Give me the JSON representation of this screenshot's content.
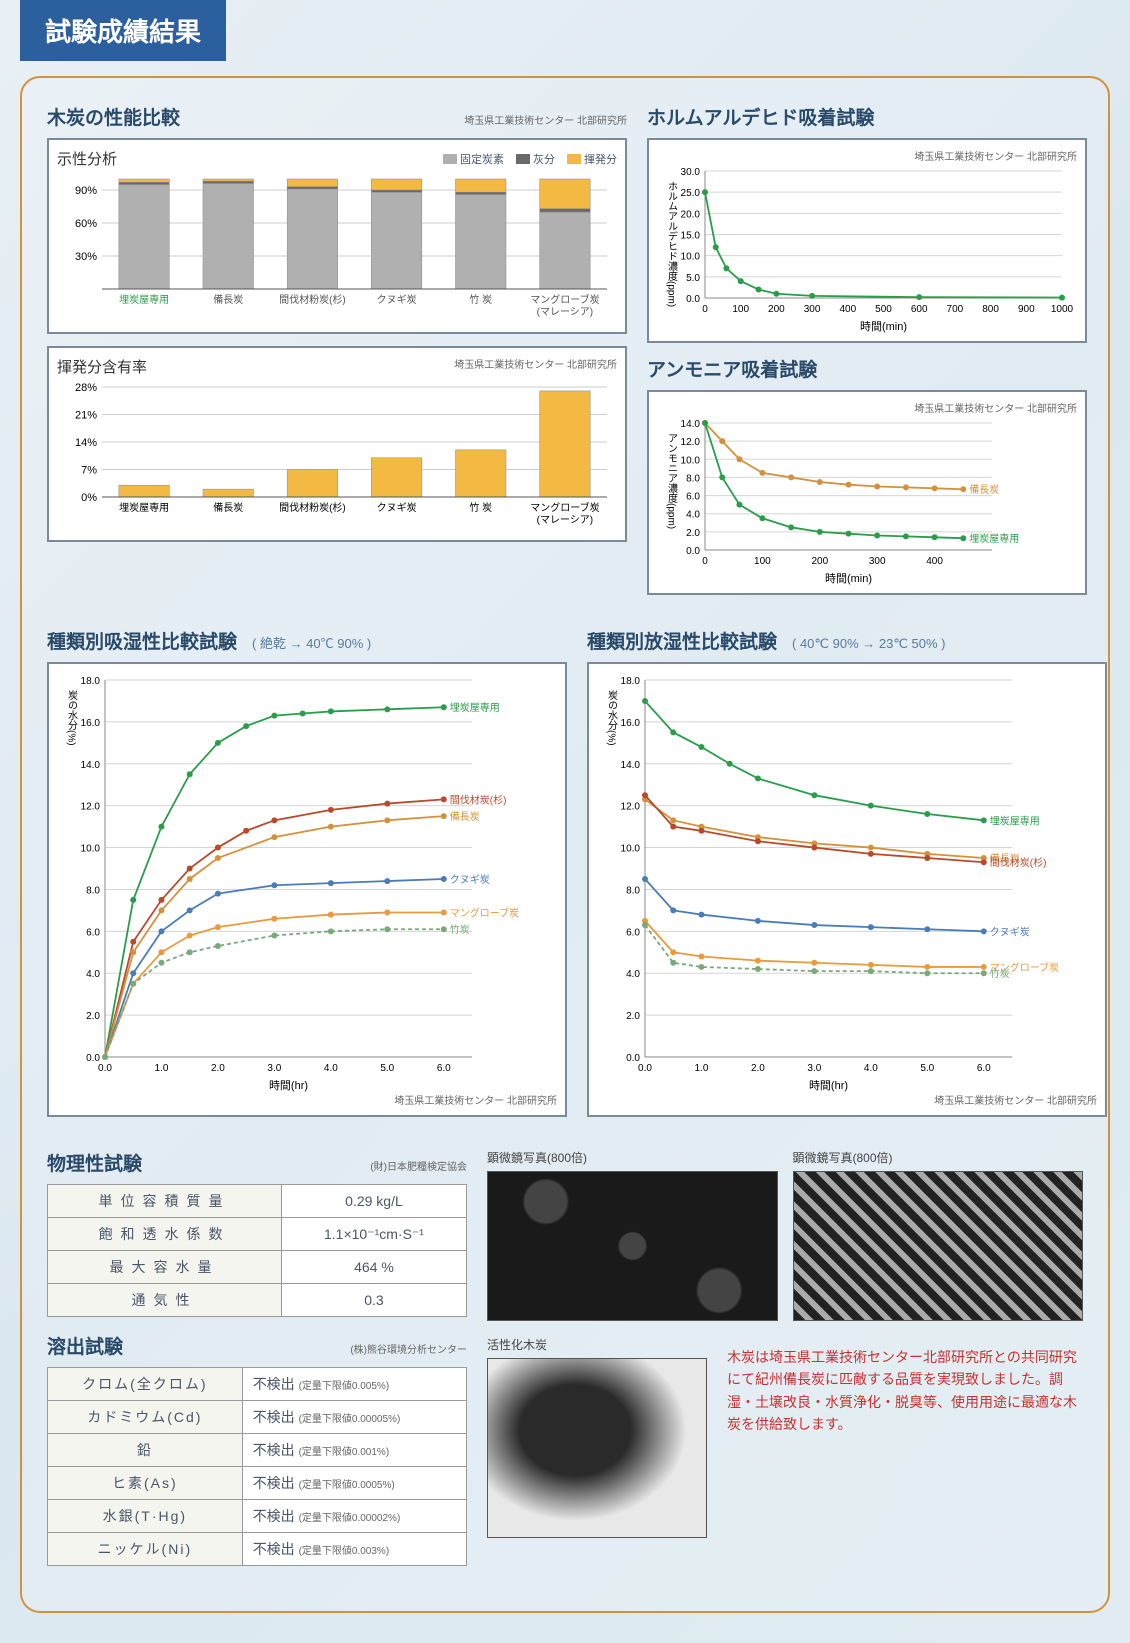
{
  "header": {
    "title": "試験成績結果"
  },
  "proximate": {
    "title": "木炭の性能比較",
    "subtitle": "埼玉県工業技術センター 北部研究所",
    "box_title": "示性分析",
    "legend": [
      {
        "label": "固定炭素",
        "color": "#b0b0b0"
      },
      {
        "label": "灰分",
        "color": "#6a6a6a"
      },
      {
        "label": "揮発分",
        "color": "#f4b942"
      }
    ],
    "categories": [
      "埋炭屋専用",
      "備長炭",
      "間伐材粉炭(杉)",
      "クヌギ炭",
      "竹 炭",
      "マングローブ炭\n(マレーシア)"
    ],
    "cat_colors": [
      "#2a9d4a",
      "#555",
      "#555",
      "#555",
      "#555",
      "#555"
    ],
    "fixed": [
      95,
      96,
      91,
      88,
      86,
      70
    ],
    "ash": [
      2,
      2,
      2,
      2,
      2,
      3
    ],
    "vol": [
      3,
      2,
      7,
      10,
      12,
      27
    ],
    "yticks": [
      30,
      60,
      90
    ],
    "ylim": 100
  },
  "volatile": {
    "title": "揮発分含有率",
    "subtitle": "埼玉県工業技術センター 北部研究所",
    "values": [
      3,
      2,
      7,
      10,
      12,
      27
    ],
    "color": "#f4b942",
    "yticks": [
      0,
      7,
      14,
      21,
      28
    ],
    "ylim": 28,
    "categories_ref": "proximate"
  },
  "formaldehyde": {
    "title": "ホルムアルデヒド吸着試験",
    "subtitle": "埼玉県工業技術センター 北部研究所",
    "ylabel": "ホルムアルデヒド濃度(ppm)",
    "xlabel": "時間(min)",
    "xlim": 1000,
    "ylim": 30,
    "xticks": [
      0,
      100,
      200,
      300,
      400,
      500,
      600,
      700,
      800,
      900,
      1000
    ],
    "yticks": [
      "0.0",
      "5.0",
      "10.0",
      "15.0",
      "20.0",
      "25.0",
      "30.0"
    ],
    "series": {
      "color": "#2a9d4a",
      "pts": [
        [
          0,
          25
        ],
        [
          30,
          12
        ],
        [
          60,
          7
        ],
        [
          100,
          4
        ],
        [
          150,
          2
        ],
        [
          200,
          1
        ],
        [
          300,
          0.5
        ],
        [
          600,
          0.2
        ],
        [
          1000,
          0.1
        ]
      ]
    }
  },
  "ammonia": {
    "title": "アンモニア吸着試験",
    "subtitle": "埼玉県工業技術センター 北部研究所",
    "ylabel": "アンモニア濃度(ppm)",
    "xlabel": "時間(min)",
    "xlim": 500,
    "ylim": 14,
    "xticks": [
      0,
      100,
      200,
      300,
      400
    ],
    "yticks": [
      "0.0",
      "2.0",
      "4.0",
      "6.0",
      "8.0",
      "10.0",
      "12.0",
      "14.0"
    ],
    "series": [
      {
        "label": "備長炭",
        "color": "#d4913c",
        "pts": [
          [
            0,
            14
          ],
          [
            30,
            12
          ],
          [
            60,
            10
          ],
          [
            100,
            8.5
          ],
          [
            150,
            8
          ],
          [
            200,
            7.5
          ],
          [
            250,
            7.2
          ],
          [
            300,
            7
          ],
          [
            350,
            6.9
          ],
          [
            400,
            6.8
          ],
          [
            450,
            6.7
          ]
        ]
      },
      {
        "label": "埋炭屋専用",
        "color": "#2a9d4a",
        "pts": [
          [
            0,
            14
          ],
          [
            30,
            8
          ],
          [
            60,
            5
          ],
          [
            100,
            3.5
          ],
          [
            150,
            2.5
          ],
          [
            200,
            2
          ],
          [
            250,
            1.8
          ],
          [
            300,
            1.6
          ],
          [
            350,
            1.5
          ],
          [
            400,
            1.4
          ],
          [
            450,
            1.3
          ]
        ]
      }
    ]
  },
  "absorb": {
    "title": "種類別吸湿性比較試験",
    "cond": "( 絶乾 → 40℃ 90% )",
    "subtitle": "埼玉県工業技術センター 北部研究所",
    "ylabel": "炭の水分(%)",
    "xlabel": "時間(hr)",
    "xlim": 6.5,
    "ylim": 18,
    "xticks": [
      "0.0",
      "1.0",
      "2.0",
      "3.0",
      "4.0",
      "5.0",
      "6.0"
    ],
    "yticks": [
      "0.0",
      "2.0",
      "4.0",
      "6.0",
      "8.0",
      "10.0",
      "12.0",
      "14.0",
      "16.0",
      "18.0"
    ],
    "series": [
      {
        "label": "埋炭屋専用",
        "color": "#2a9d4a",
        "pts": [
          [
            0,
            0
          ],
          [
            0.5,
            7.5
          ],
          [
            1,
            11
          ],
          [
            1.5,
            13.5
          ],
          [
            2,
            15
          ],
          [
            2.5,
            15.8
          ],
          [
            3,
            16.3
          ],
          [
            3.5,
            16.4
          ],
          [
            4,
            16.5
          ],
          [
            5,
            16.6
          ],
          [
            6,
            16.7
          ]
        ]
      },
      {
        "label": "間伐材炭(杉)",
        "color": "#b84a2a",
        "pts": [
          [
            0,
            0
          ],
          [
            0.5,
            5.5
          ],
          [
            1,
            7.5
          ],
          [
            1.5,
            9
          ],
          [
            2,
            10
          ],
          [
            2.5,
            10.8
          ],
          [
            3,
            11.3
          ],
          [
            4,
            11.8
          ],
          [
            5,
            12.1
          ],
          [
            6,
            12.3
          ]
        ]
      },
      {
        "label": "備長炭",
        "color": "#d4913c",
        "pts": [
          [
            0,
            0
          ],
          [
            0.5,
            5
          ],
          [
            1,
            7
          ],
          [
            1.5,
            8.5
          ],
          [
            2,
            9.5
          ],
          [
            3,
            10.5
          ],
          [
            4,
            11
          ],
          [
            5,
            11.3
          ],
          [
            6,
            11.5
          ]
        ]
      },
      {
        "label": "クヌギ炭",
        "color": "#4a7db8",
        "pts": [
          [
            0,
            0
          ],
          [
            0.5,
            4
          ],
          [
            1,
            6
          ],
          [
            1.5,
            7
          ],
          [
            2,
            7.8
          ],
          [
            3,
            8.2
          ],
          [
            4,
            8.3
          ],
          [
            5,
            8.4
          ],
          [
            6,
            8.5
          ]
        ]
      },
      {
        "label": "マングローブ炭",
        "color": "#e89a3c",
        "pts": [
          [
            0,
            0
          ],
          [
            0.5,
            3.5
          ],
          [
            1,
            5
          ],
          [
            1.5,
            5.8
          ],
          [
            2,
            6.2
          ],
          [
            3,
            6.6
          ],
          [
            4,
            6.8
          ],
          [
            5,
            6.9
          ],
          [
            6,
            6.9
          ]
        ]
      },
      {
        "label": "竹炭",
        "color": "#7aa87a",
        "dash": "4,3",
        "pts": [
          [
            0,
            0
          ],
          [
            0.5,
            3.5
          ],
          [
            1,
            4.5
          ],
          [
            1.5,
            5
          ],
          [
            2,
            5.3
          ],
          [
            3,
            5.8
          ],
          [
            4,
            6
          ],
          [
            5,
            6.1
          ],
          [
            6,
            6.1
          ]
        ]
      }
    ]
  },
  "desorb": {
    "title": "種類別放湿性比較試験",
    "cond": "( 40℃ 90% → 23℃ 50% )",
    "subtitle": "埼玉県工業技術センター 北部研究所",
    "ylabel": "炭の水分(%)",
    "xlabel": "時間(hr)",
    "xlim": 6.5,
    "ylim": 18,
    "xticks": [
      "0.0",
      "1.0",
      "2.0",
      "3.0",
      "4.0",
      "5.0",
      "6.0"
    ],
    "yticks": [
      "0.0",
      "2.0",
      "4.0",
      "6.0",
      "8.0",
      "10.0",
      "12.0",
      "14.0",
      "16.0",
      "18.0"
    ],
    "series": [
      {
        "label": "埋炭屋専用",
        "color": "#2a9d4a",
        "pts": [
          [
            0,
            17
          ],
          [
            0.5,
            15.5
          ],
          [
            1,
            14.8
          ],
          [
            1.5,
            14
          ],
          [
            2,
            13.3
          ],
          [
            3,
            12.5
          ],
          [
            4,
            12
          ],
          [
            5,
            11.6
          ],
          [
            6,
            11.3
          ]
        ]
      },
      {
        "label": "備長炭",
        "color": "#d4913c",
        "pts": [
          [
            0,
            12.3
          ],
          [
            0.5,
            11.3
          ],
          [
            1,
            11
          ],
          [
            2,
            10.5
          ],
          [
            3,
            10.2
          ],
          [
            4,
            10
          ],
          [
            5,
            9.7
          ],
          [
            6,
            9.5
          ]
        ]
      },
      {
        "label": "間伐材炭(杉)",
        "color": "#b84a2a",
        "pts": [
          [
            0,
            12.5
          ],
          [
            0.5,
            11
          ],
          [
            1,
            10.8
          ],
          [
            2,
            10.3
          ],
          [
            3,
            10
          ],
          [
            4,
            9.7
          ],
          [
            5,
            9.5
          ],
          [
            6,
            9.3
          ]
        ]
      },
      {
        "label": "クヌギ炭",
        "color": "#4a7db8",
        "pts": [
          [
            0,
            8.5
          ],
          [
            0.5,
            7
          ],
          [
            1,
            6.8
          ],
          [
            2,
            6.5
          ],
          [
            3,
            6.3
          ],
          [
            4,
            6.2
          ],
          [
            5,
            6.1
          ],
          [
            6,
            6
          ]
        ]
      },
      {
        "label": "マングローブ炭",
        "color": "#e89a3c",
        "pts": [
          [
            0,
            6.5
          ],
          [
            0.5,
            5
          ],
          [
            1,
            4.8
          ],
          [
            2,
            4.6
          ],
          [
            3,
            4.5
          ],
          [
            4,
            4.4
          ],
          [
            5,
            4.3
          ],
          [
            6,
            4.3
          ]
        ]
      },
      {
        "label": "竹炭",
        "color": "#7aa87a",
        "dash": "4,3",
        "pts": [
          [
            0,
            6.3
          ],
          [
            0.5,
            4.5
          ],
          [
            1,
            4.3
          ],
          [
            2,
            4.2
          ],
          [
            3,
            4.1
          ],
          [
            4,
            4.1
          ],
          [
            5,
            4
          ],
          [
            6,
            4
          ]
        ]
      }
    ]
  },
  "physical": {
    "title": "物理性試験",
    "subtitle": "(財)日本肥糧検定協会",
    "rows": [
      {
        "label": "単位容積質量",
        "value": "0.29 kg/L"
      },
      {
        "label": "飽和透水係数",
        "value": "1.1×10⁻¹cm·S⁻¹"
      },
      {
        "label": "最大容水量",
        "value": "464 %"
      },
      {
        "label": "通気性",
        "value": "0.3"
      }
    ]
  },
  "elution": {
    "title": "溶出試験",
    "subtitle": "(株)熊谷環境分析センター",
    "rows": [
      {
        "label": "クロム(全クロム)",
        "value": "不検出",
        "note": "(定量下限値0.005%)"
      },
      {
        "label": "カドミウム(Cd)",
        "value": "不検出",
        "note": "(定量下限値0.00005%)"
      },
      {
        "label": "鉛",
        "value": "不検出",
        "note": "(定量下限値0.001%)"
      },
      {
        "label": "ヒ素(As)",
        "value": "不検出",
        "note": "(定量下限値0.0005%)"
      },
      {
        "label": "水銀(T·Hg)",
        "value": "不検出",
        "note": "(定量下限値0.00002%)"
      },
      {
        "label": "ニッケル(Ni)",
        "value": "不検出",
        "note": "(定量下限値0.003%)"
      }
    ]
  },
  "photos": {
    "p1": "顕微鏡写真(800倍)",
    "p2": "顕微鏡写真(800倍)",
    "p3": "活性化木炭"
  },
  "red_note": "木炭は埼玉県工業技術センター北部研究所との共同研究にて紀州備長炭に匹敵する品質を実現致しました。調湿・土壌改良・水質浄化・脱臭等、使用用途に最適な木炭を供給致します。"
}
